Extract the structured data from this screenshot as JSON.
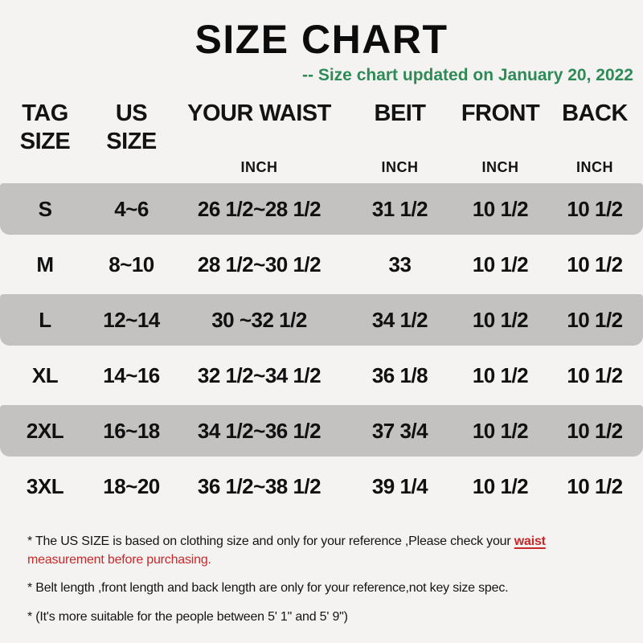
{
  "title": "SIZE CHART",
  "subtitle": "-- Size chart updated on January 20, 2022",
  "colors": {
    "background": "#f4f3f1",
    "row_shaded": "#c3c2c1",
    "subtitle_green": "#2e8b57",
    "note_red": "#c62828",
    "text": "#131313"
  },
  "table": {
    "columns": [
      {
        "line1": "TAG",
        "line2": "SIZE",
        "unit": ""
      },
      {
        "line1": "US",
        "line2": "SIZE",
        "unit": ""
      },
      {
        "line1": "YOUR WAIST",
        "line2": "",
        "unit": "INCH"
      },
      {
        "line1": "BEIT",
        "line2": "",
        "unit": "INCH"
      },
      {
        "line1": "FRONT",
        "line2": "",
        "unit": "INCH"
      },
      {
        "line1": "BACK",
        "line2": "",
        "unit": "INCH"
      }
    ]
  },
  "chart_data": {
    "type": "table",
    "title": "SIZE CHART",
    "updated_note": "-- Size chart updated on January 20, 2022",
    "columns": [
      "TAG SIZE",
      "US SIZE",
      "YOUR WAIST (INCH)",
      "BEIT (INCH)",
      "FRONT (INCH)",
      "BACK (INCH)"
    ],
    "rows": [
      [
        "S",
        "4~6",
        "26 1/2~28 1/2",
        "31 1/2",
        "10 1/2",
        "10 1/2"
      ],
      [
        "M",
        "8~10",
        "28 1/2~30 1/2",
        "33",
        "10 1/2",
        "10 1/2"
      ],
      [
        "L",
        "12~14",
        "30 ~32 1/2",
        "34 1/2",
        "10 1/2",
        "10 1/2"
      ],
      [
        "XL",
        "14~16",
        "32 1/2~34 1/2",
        "36 1/8",
        "10 1/2",
        "10 1/2"
      ],
      [
        "2XL",
        "16~18",
        "34 1/2~36 1/2",
        "37 3/4",
        "10 1/2",
        "10 1/2"
      ],
      [
        "3XL",
        "18~20",
        "36 1/2~38 1/2",
        "39 1/4",
        "10 1/2",
        "10 1/2"
      ]
    ]
  },
  "notes": {
    "note1_part1": "* The US SIZE is based on clothing size and only for your reference ,Please check your ",
    "note1_highlight": "waist",
    "note1_part2": "measurement before purchasing.",
    "note2": "* Belt length ,front length and back length are only for your reference,not key size spec.",
    "note3": "* (It's more suitable for the people between 5' 1\" and 5' 9\")"
  }
}
